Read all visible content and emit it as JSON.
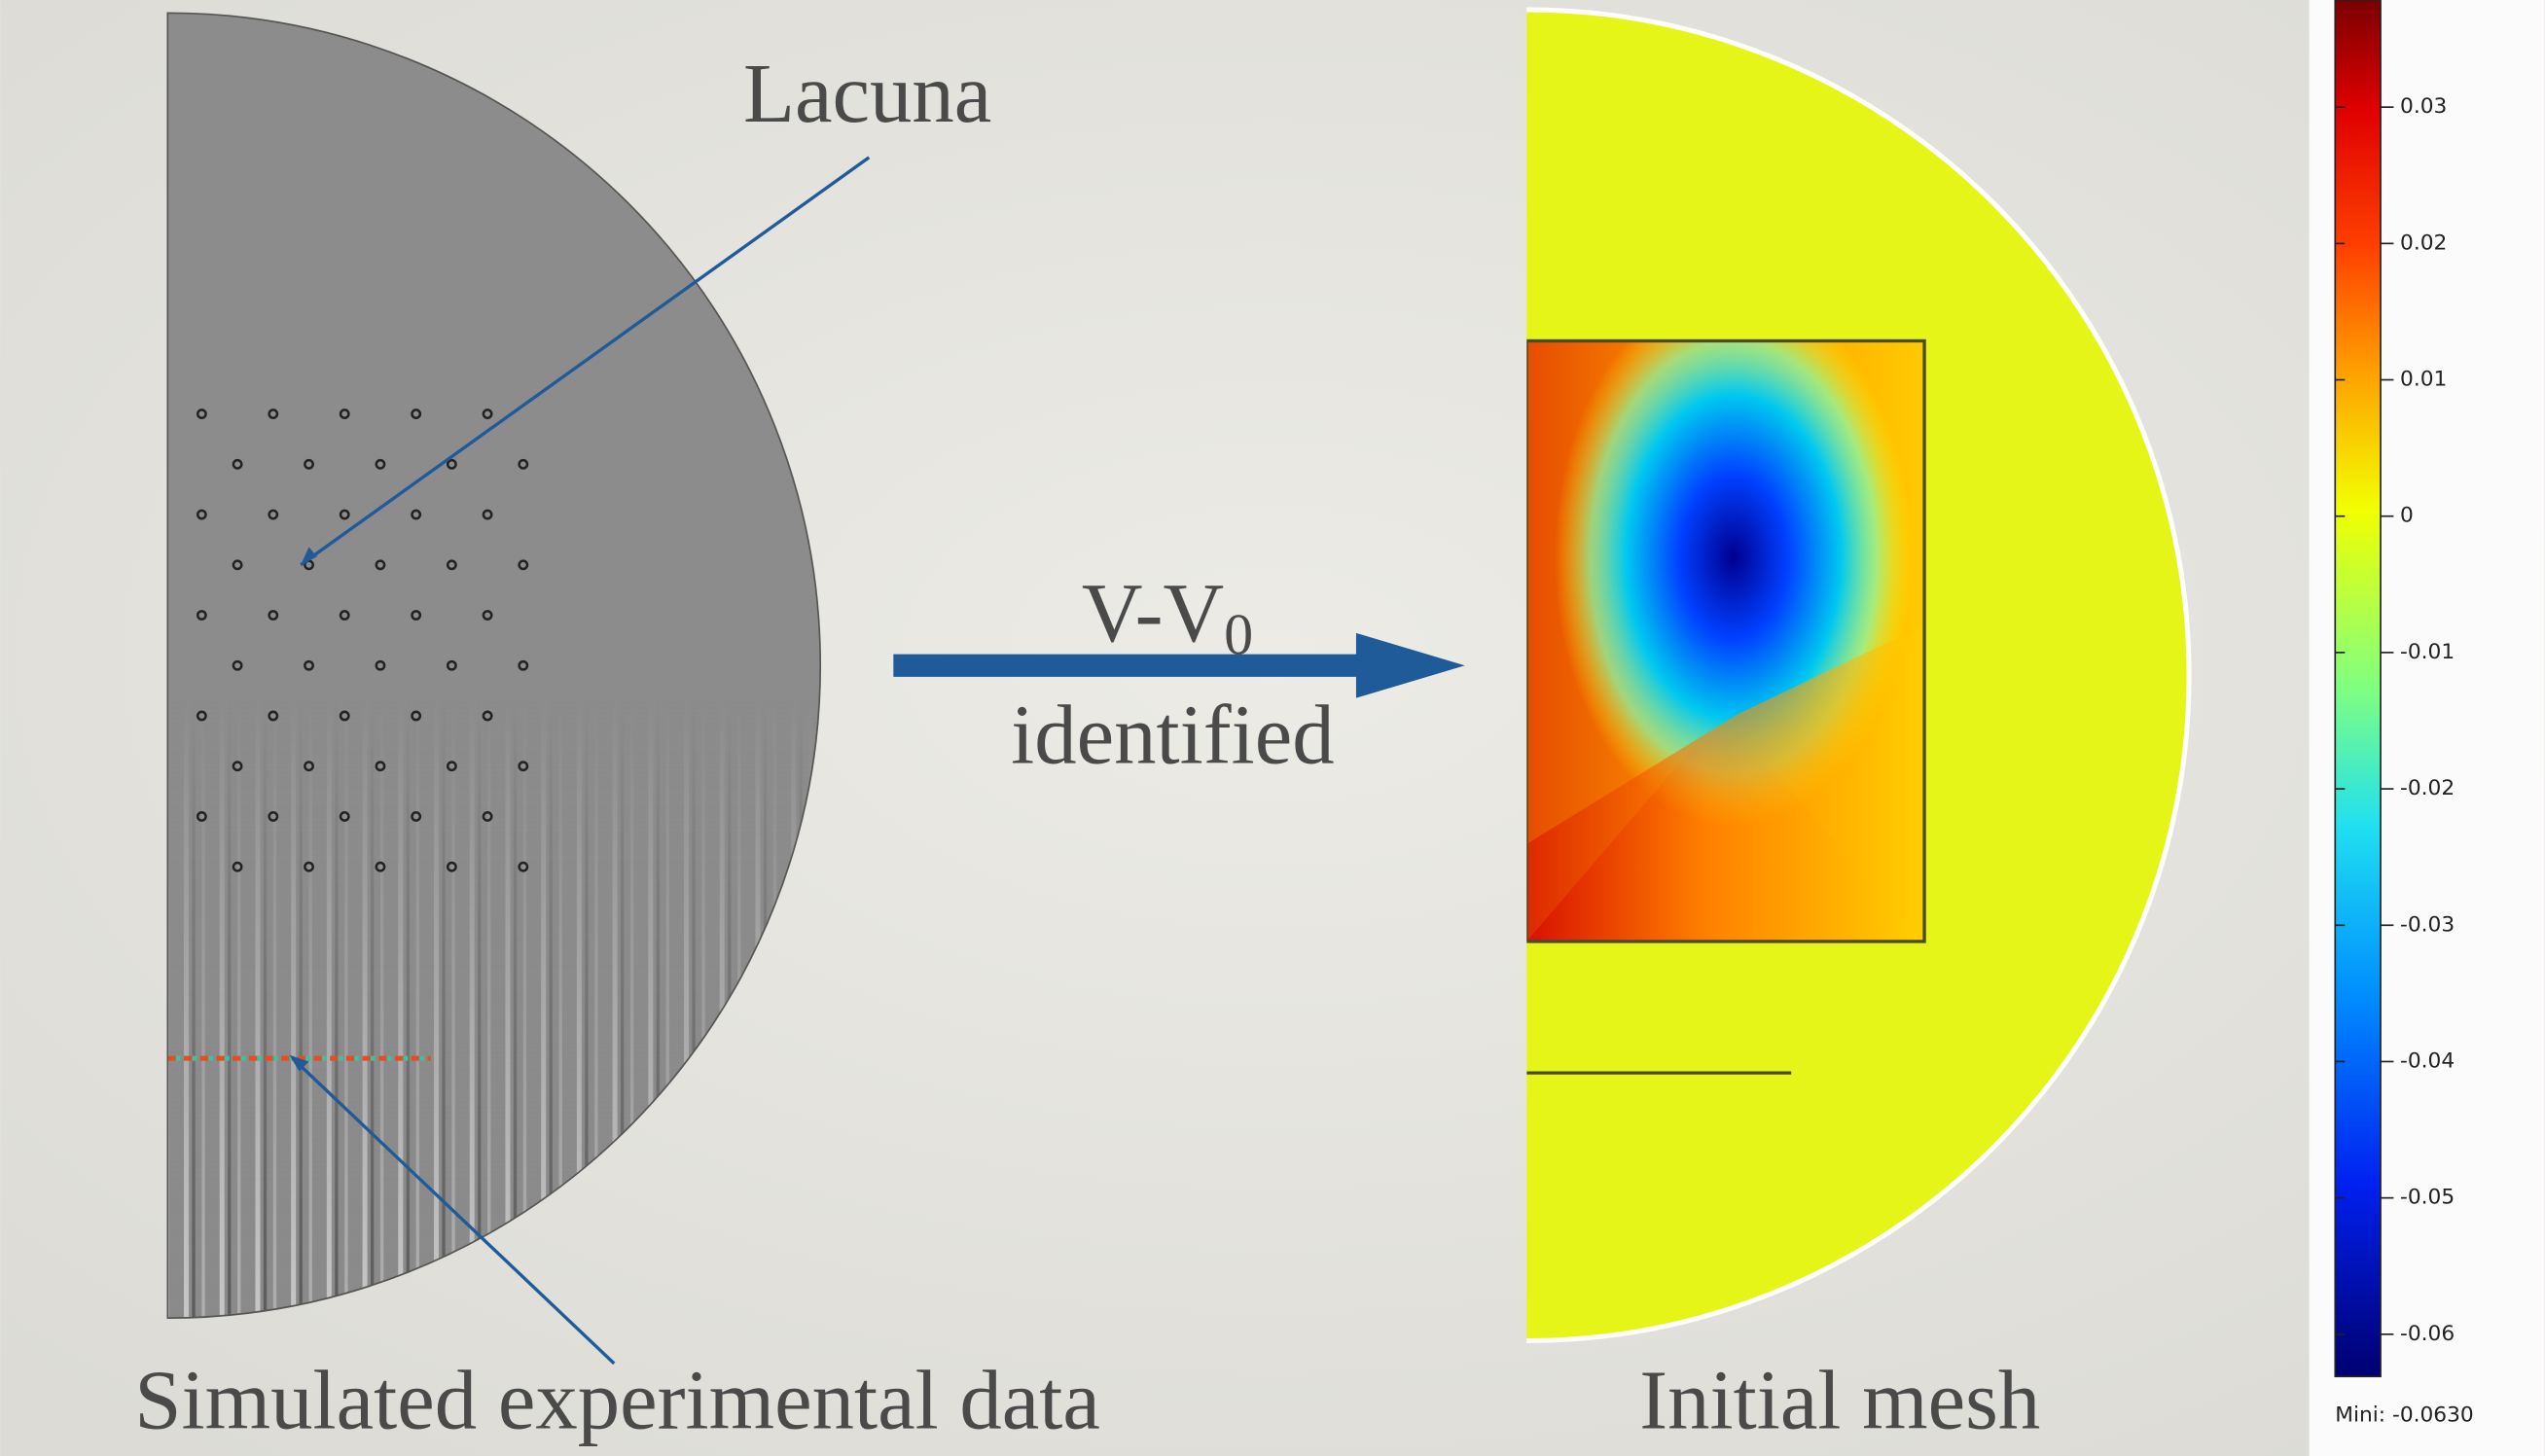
{
  "labels": {
    "lacuna": "Lacuna",
    "arrow_top": "V-V",
    "arrow_top_sub": "0",
    "arrow_bottom": "identified",
    "left_caption": "Simulated experimental data",
    "right_caption": "Initial mesh"
  },
  "colorbar": {
    "ticks": [
      "0.03",
      "0.02",
      "0.01",
      "0",
      "-0.01",
      "-0.02",
      "-0.03",
      "-0.04",
      "-0.05",
      "-0.06"
    ],
    "min_label": "Mini: -0.0630"
  }
}
